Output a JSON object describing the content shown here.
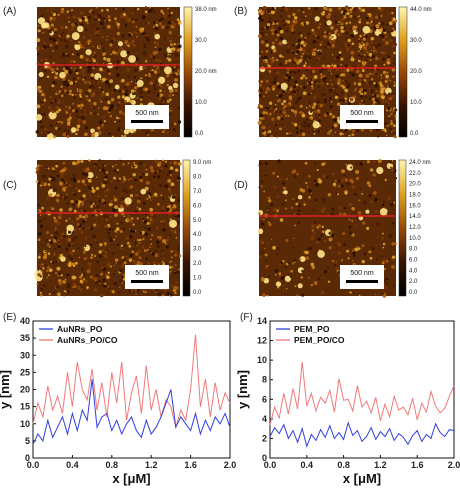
{
  "panels": [
    {
      "label": "(A)",
      "cbar_ticks": [
        "38.0 nm",
        "30.0",
        "20.0 nm",
        "10.0",
        "0.0"
      ],
      "cbar_range": [
        0,
        38
      ],
      "scale_bar": "500 nm",
      "texture": {
        "density": 0.8,
        "big": 0.04
      }
    },
    {
      "label": "(B)",
      "cbar_ticks": [
        "44.0 nm",
        "30.0",
        "20.0",
        "10.0",
        "0.0"
      ],
      "cbar_range": [
        0,
        44
      ],
      "scale_bar": "500 nm",
      "texture": {
        "density": 1.0,
        "big": 0.02
      }
    },
    {
      "label": "(C)",
      "cbar_ticks": [
        "9.0 nm",
        "8.0",
        "7.0",
        "6.0",
        "5.0",
        "4.0",
        "3.0",
        "2.0",
        "1.0",
        "0.0"
      ],
      "cbar_range": [
        0,
        9
      ],
      "scale_bar": "500 nm",
      "texture": {
        "density": 0.75,
        "big": 0.015
      }
    },
    {
      "label": "(D)",
      "cbar_ticks": [
        "24.0 nm",
        "22.0",
        "20.0",
        "18.0",
        "16.0",
        "14.0",
        "12.0",
        "10.0",
        "8.0",
        "6.0",
        "4.0",
        "2.0",
        "0.0"
      ],
      "cbar_range": [
        0,
        24
      ],
      "scale_bar": "500 nm",
      "texture": {
        "density": 0.35,
        "big": 0.05
      }
    }
  ],
  "colors": {
    "line_blue": "#2f3fe0",
    "line_red": "#f07a7a",
    "afm_line": "#e02020"
  },
  "chart_data": [
    {
      "label": "(E)",
      "type": "line",
      "xlabel": "x [μM]",
      "ylabel": "y [nm]",
      "xlim": [
        0.0,
        2.0
      ],
      "ylim": [
        0,
        40
      ],
      "xticks": [
        "0.0",
        "0.4",
        "0.8",
        "1.2",
        "1.6",
        "2.0"
      ],
      "yticks": [
        "0",
        "5",
        "10",
        "15",
        "20",
        "25",
        "30",
        "35",
        "40"
      ],
      "legend_position": "top-left",
      "series": [
        {
          "name": "AuNRs_PO",
          "color": "#2f3fe0",
          "x": [
            0.0,
            0.05,
            0.1,
            0.15,
            0.2,
            0.25,
            0.3,
            0.35,
            0.4,
            0.45,
            0.5,
            0.55,
            0.6,
            0.65,
            0.7,
            0.75,
            0.8,
            0.85,
            0.9,
            0.95,
            1.0,
            1.05,
            1.1,
            1.15,
            1.2,
            1.25,
            1.3,
            1.35,
            1.4,
            1.45,
            1.5,
            1.55,
            1.6,
            1.65,
            1.7,
            1.75,
            1.8,
            1.85,
            1.9,
            1.95,
            2.0
          ],
          "y": [
            4,
            7,
            5,
            11,
            6,
            9,
            12,
            7,
            13,
            8,
            14,
            11,
            23,
            9,
            12,
            13,
            8,
            11,
            7,
            10,
            12,
            8,
            6,
            11,
            7,
            9,
            12,
            16,
            20,
            9,
            12,
            10,
            8,
            13,
            7,
            11,
            8,
            12,
            10,
            13,
            9
          ]
        },
        {
          "name": "AuNRs_PO/CO",
          "color": "#f07a7a",
          "x": [
            0.0,
            0.05,
            0.1,
            0.15,
            0.2,
            0.25,
            0.3,
            0.35,
            0.4,
            0.45,
            0.5,
            0.55,
            0.6,
            0.65,
            0.7,
            0.75,
            0.8,
            0.85,
            0.9,
            0.95,
            1.0,
            1.05,
            1.1,
            1.15,
            1.2,
            1.25,
            1.3,
            1.35,
            1.4,
            1.45,
            1.5,
            1.55,
            1.6,
            1.65,
            1.7,
            1.75,
            1.8,
            1.85,
            1.9,
            1.95,
            2.0
          ],
          "y": [
            10,
            16,
            12,
            21,
            14,
            18,
            13,
            25,
            15,
            28,
            20,
            17,
            26,
            14,
            22,
            12,
            25,
            16,
            28,
            11,
            19,
            24,
            13,
            27,
            14,
            20,
            12,
            17,
            15,
            9,
            14,
            11,
            20,
            36,
            15,
            23,
            12,
            22,
            14,
            19,
            16
          ]
        }
      ]
    },
    {
      "label": "(F)",
      "type": "line",
      "xlabel": "x [μM]",
      "ylabel": "y [nm]",
      "xlim": [
        0.0,
        2.0
      ],
      "ylim": [
        0,
        14
      ],
      "xticks": [
        "0.0",
        "0.4",
        "0.8",
        "1.2",
        "1.6",
        "2.0"
      ],
      "yticks": [
        "0",
        "2",
        "4",
        "6",
        "8",
        "10",
        "12",
        "14"
      ],
      "legend_position": "top-left",
      "series": [
        {
          "name": "PEM_PO",
          "color": "#2f3fe0",
          "x": [
            0.0,
            0.05,
            0.1,
            0.15,
            0.2,
            0.25,
            0.3,
            0.35,
            0.4,
            0.45,
            0.5,
            0.55,
            0.6,
            0.65,
            0.7,
            0.75,
            0.8,
            0.85,
            0.9,
            0.95,
            1.0,
            1.05,
            1.1,
            1.15,
            1.2,
            1.25,
            1.3,
            1.35,
            1.4,
            1.45,
            1.5,
            1.55,
            1.6,
            1.65,
            1.7,
            1.75,
            1.8,
            1.85,
            1.9,
            1.95,
            2.0
          ],
          "y": [
            2.2,
            3.1,
            2.5,
            3.4,
            2.0,
            2.8,
            1.6,
            3.0,
            1.2,
            2.4,
            1.8,
            2.9,
            2.1,
            3.3,
            2.0,
            2.6,
            1.9,
            3.6,
            2.3,
            2.8,
            1.7,
            2.2,
            3.1,
            1.9,
            2.7,
            2.2,
            3.0,
            1.8,
            2.5,
            2.1,
            1.4,
            2.3,
            2.8,
            1.7,
            2.4,
            2.0,
            3.5,
            2.6,
            2.2,
            2.9,
            2.8
          ]
        },
        {
          "name": "PEM_PO/CO",
          "color": "#f07a7a",
          "x": [
            0.0,
            0.05,
            0.1,
            0.15,
            0.2,
            0.25,
            0.3,
            0.35,
            0.4,
            0.45,
            0.5,
            0.55,
            0.6,
            0.65,
            0.7,
            0.75,
            0.8,
            0.85,
            0.9,
            0.95,
            1.0,
            1.05,
            1.1,
            1.15,
            1.2,
            1.25,
            1.3,
            1.35,
            1.4,
            1.45,
            1.5,
            1.55,
            1.6,
            1.65,
            1.7,
            1.75,
            1.8,
            1.85,
            1.9,
            1.95,
            2.0
          ],
          "y": [
            3.4,
            5.2,
            4.1,
            6.6,
            4.5,
            7.1,
            5.0,
            9.8,
            5.3,
            6.6,
            4.8,
            6.2,
            5.6,
            6.9,
            4.7,
            8.1,
            5.9,
            6.0,
            4.8,
            7.4,
            5.2,
            5.8,
            4.6,
            6.2,
            3.8,
            5.5,
            4.2,
            6.3,
            4.9,
            5.2,
            4.4,
            6.1,
            3.9,
            5.6,
            4.7,
            6.8,
            5.3,
            4.6,
            5.1,
            6.3,
            7.4
          ]
        }
      ]
    }
  ]
}
